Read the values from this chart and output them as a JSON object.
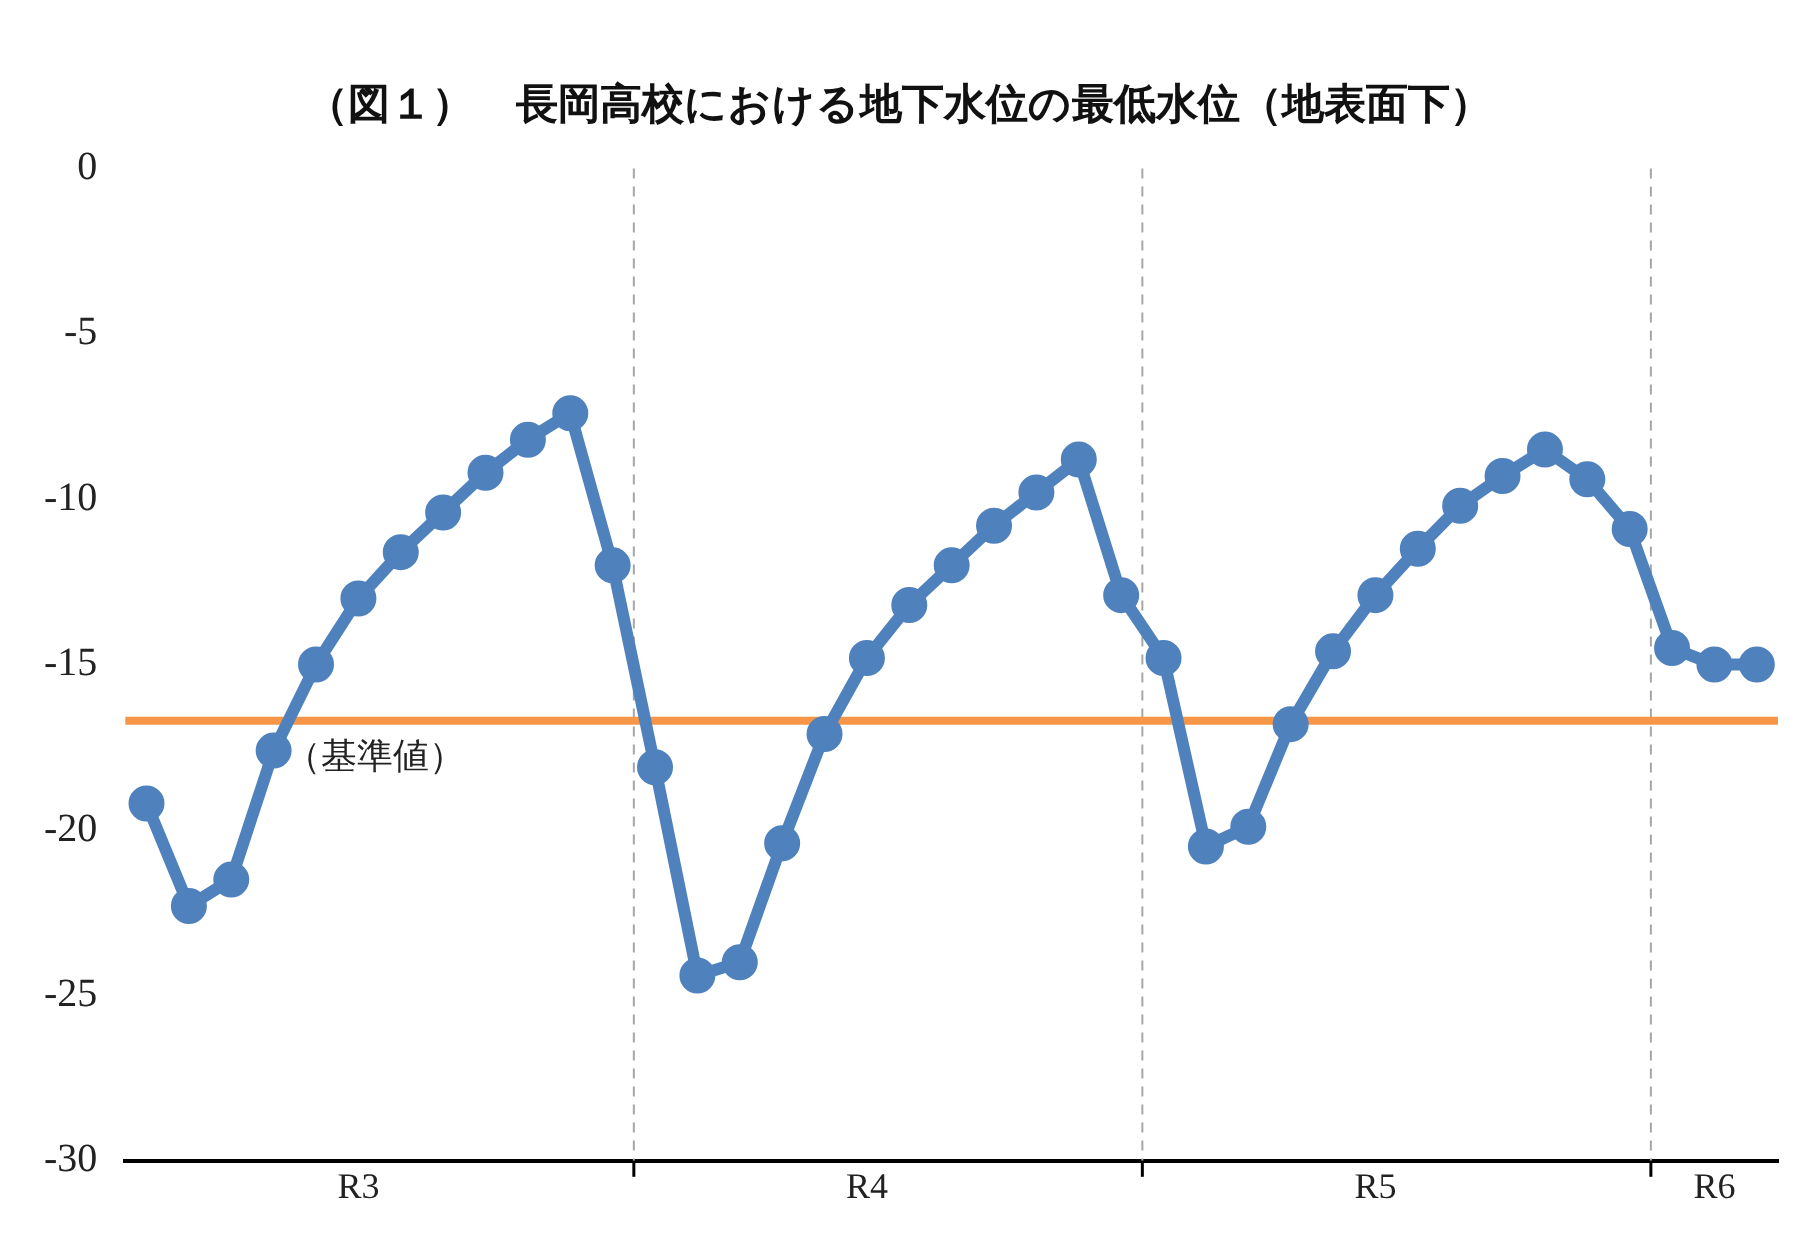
{
  "chart_data": {
    "type": "line",
    "title": "（図１）　長岡高校における地下水位の最低水位（地表面下）",
    "categories": [
      null,
      null,
      null,
      null,
      null,
      "R3",
      null,
      null,
      null,
      null,
      null,
      null,
      null,
      null,
      null,
      null,
      null,
      "R4",
      null,
      null,
      null,
      null,
      null,
      null,
      null,
      null,
      null,
      null,
      null,
      "R5",
      null,
      null,
      null,
      null,
      null,
      null,
      null,
      "R6",
      null
    ],
    "series": [
      {
        "color": "#4f81bd",
        "values": [
          -19.2,
          -22.3,
          -21.5,
          -17.6,
          -15.0,
          -13.0,
          -11.6,
          -10.4,
          -9.2,
          -8.2,
          -7.4,
          -12.0,
          -18.1,
          -24.4,
          -24.0,
          -20.4,
          -17.1,
          -14.8,
          -13.2,
          -12.0,
          -10.8,
          -9.8,
          -8.8,
          -12.9,
          -14.8,
          -20.5,
          -19.9,
          -16.8,
          -14.6,
          -12.9,
          -11.5,
          -10.2,
          -9.3,
          -8.5,
          -9.4,
          -10.9,
          -14.5,
          -15.0,
          -15.0
        ]
      }
    ],
    "ylim": [
      -30,
      0
    ],
    "yticks": [
      -30,
      -25,
      -20,
      -15,
      -10,
      -5,
      0
    ],
    "ref_lines": [
      {
        "axis": "y",
        "value": -16.7,
        "label": "（基準値）",
        "color": "#f79646",
        "line_style": "solid"
      }
    ],
    "marker": "circle",
    "line_style": "solid",
    "grid": false,
    "legend": false
  }
}
